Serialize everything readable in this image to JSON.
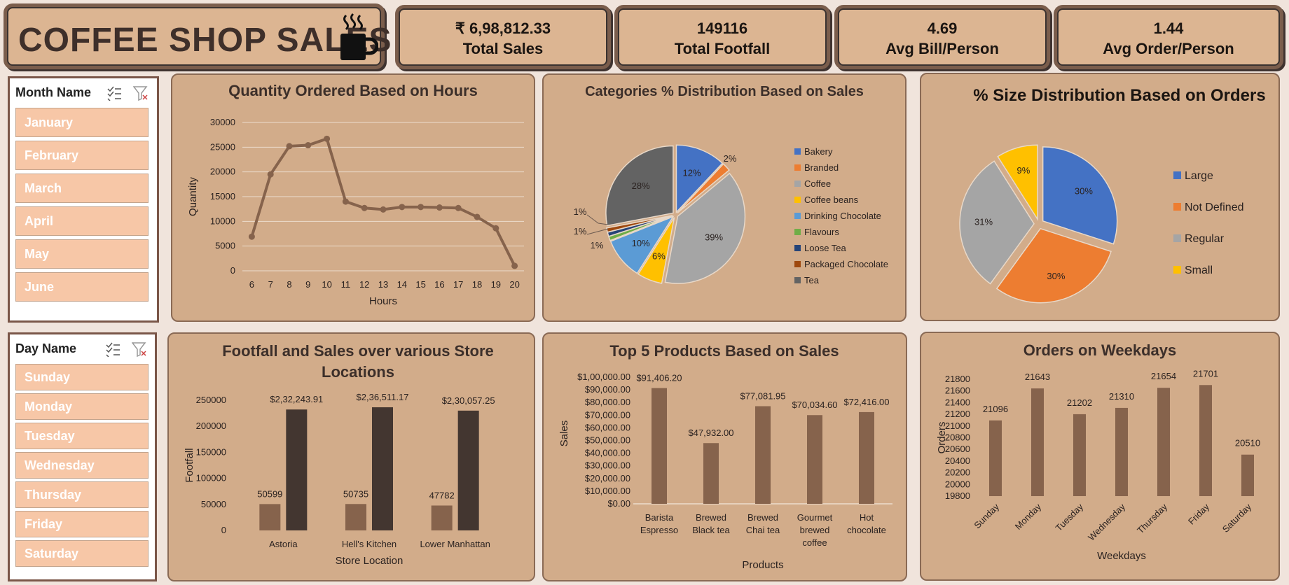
{
  "header": {
    "title": "COFFEE SHOP SALES"
  },
  "kpis": [
    {
      "value": "₹ 6,98,812.33",
      "label": "Total Sales"
    },
    {
      "value": "149116",
      "label": "Total Footfall"
    },
    {
      "value": "4.69",
      "label": "Avg Bill/Person"
    },
    {
      "value": "1.44",
      "label": "Avg Order/Person"
    }
  ],
  "month_slicer": {
    "header": "Month Name",
    "items": [
      "January",
      "February",
      "March",
      "April",
      "May",
      "June"
    ]
  },
  "day_slicer": {
    "header": "Day Name",
    "items": [
      "Sunday",
      "Monday",
      "Tuesday",
      "Wednesday",
      "Thursday",
      "Friday",
      "Saturday"
    ]
  },
  "colors": {
    "accent": "#86634c",
    "dark": "#433630",
    "background": "#f0e4dc",
    "card": "#d2ac8a"
  },
  "chart_data": [
    {
      "id": "hours",
      "type": "line",
      "title": "Quantity Ordered Based on Hours",
      "xlabel": "Hours",
      "ylabel": "Quantity",
      "x": [
        6,
        7,
        8,
        9,
        10,
        11,
        12,
        13,
        14,
        15,
        16,
        17,
        18,
        19,
        20
      ],
      "values": [
        6900,
        19500,
        25200,
        25400,
        26700,
        14000,
        12700,
        12400,
        12900,
        12900,
        12800,
        12700,
        10900,
        8600,
        1000
      ],
      "ylim": [
        0,
        30000
      ],
      "yticks": [
        0,
        5000,
        10000,
        15000,
        20000,
        25000,
        30000
      ],
      "grid": true
    },
    {
      "id": "categories",
      "type": "pie",
      "title": "Categories % Distribution Based on Sales",
      "legend_position": "right",
      "slices": [
        {
          "name": "Bakery",
          "value": 12,
          "label": "12%",
          "color": "#4472c4"
        },
        {
          "name": "Branded",
          "value": 2,
          "label": "2%",
          "color": "#ed7d31"
        },
        {
          "name": "Coffee",
          "value": 39,
          "label": "39%",
          "color": "#a5a5a5"
        },
        {
          "name": "Coffee beans",
          "value": 6,
          "label": "6%",
          "color": "#ffc000"
        },
        {
          "name": "Drinking Chocolate",
          "value": 10,
          "label": "10%",
          "color": "#5b9bd5"
        },
        {
          "name": "Flavours",
          "value": 1,
          "label": "1%",
          "color": "#70ad47"
        },
        {
          "name": "Loose Tea",
          "value": 1,
          "label": "1%",
          "color": "#264478"
        },
        {
          "name": "Packaged Chocolate",
          "value": 1,
          "label": "1%",
          "color": "#9e480e"
        },
        {
          "name": "Tea",
          "value": 28,
          "label": "28%",
          "color": "#636363"
        }
      ]
    },
    {
      "id": "sizes",
      "type": "pie",
      "title": "% Size Distribution Based on Orders",
      "legend_position": "right",
      "slices": [
        {
          "name": "Large",
          "value": 30,
          "label": "30%",
          "color": "#4472c4"
        },
        {
          "name": "Not Defined",
          "value": 30,
          "label": "30%",
          "color": "#ed7d31"
        },
        {
          "name": "Regular",
          "value": 31,
          "label": "31%",
          "color": "#a5a5a5"
        },
        {
          "name": "Small",
          "value": 9,
          "label": "9%",
          "color": "#ffc000"
        }
      ]
    },
    {
      "id": "stores",
      "type": "bar",
      "title": "Footfall and Sales over various Store Locations",
      "xlabel": "Store Location",
      "ylabel": "Footfall",
      "categories": [
        "Astoria",
        "Hell's Kitchen",
        "Lower Manhattan"
      ],
      "series": [
        {
          "values": [
            50599,
            50735,
            47782
          ],
          "labels": [
            "50599",
            "50735",
            "47782"
          ],
          "color": "#86634c"
        },
        {
          "values": [
            232243.91,
            236511.17,
            230057.25
          ],
          "labels": [
            "$2,32,243.91",
            "$2,36,511.17",
            "$2,30,057.25"
          ],
          "color": "#433630"
        }
      ],
      "ylim": [
        0,
        250000
      ],
      "yticks": [
        0,
        50000,
        100000,
        150000,
        200000,
        250000
      ]
    },
    {
      "id": "products",
      "type": "bar",
      "title": "Top 5 Products Based on Sales",
      "xlabel": "Products",
      "ylabel": "Sales",
      "categories": [
        [
          "Barista",
          "Espresso"
        ],
        [
          "Brewed",
          "Black tea"
        ],
        [
          "Brewed",
          "Chai tea"
        ],
        [
          "Gourmet",
          "brewed",
          "coffee"
        ],
        [
          "Hot",
          "chocolate"
        ]
      ],
      "values": [
        91406.2,
        47932,
        77081.95,
        70034.6,
        72416
      ],
      "labels": [
        "$91,406.20",
        "$47,932.00",
        "$77,081.95",
        "$70,034.60",
        "$72,416.00"
      ],
      "ylim": [
        0,
        100000
      ],
      "yticks": [
        "$0.00",
        "$10,000.00",
        "$20,000.00",
        "$30,000.00",
        "$40,000.00",
        "$50,000.00",
        "$60,000.00",
        "$70,000.00",
        "$80,000.00",
        "$90,000.00",
        "$1,00,000.00"
      ]
    },
    {
      "id": "weekdays",
      "type": "bar",
      "title": "Orders on Weekdays",
      "xlabel": "Weekdays",
      "ylabel": "Orders",
      "categories": [
        "Sunday",
        "Monday",
        "Tuesday",
        "Wednesday",
        "Thursday",
        "Friday",
        "Saturday"
      ],
      "values": [
        21096,
        21643,
        21202,
        21310,
        21654,
        21701,
        20510
      ],
      "ylim": [
        19800,
        21800
      ],
      "yticks": [
        19800,
        20000,
        20200,
        20400,
        20600,
        20800,
        21000,
        21200,
        21400,
        21600,
        21800
      ]
    }
  ]
}
